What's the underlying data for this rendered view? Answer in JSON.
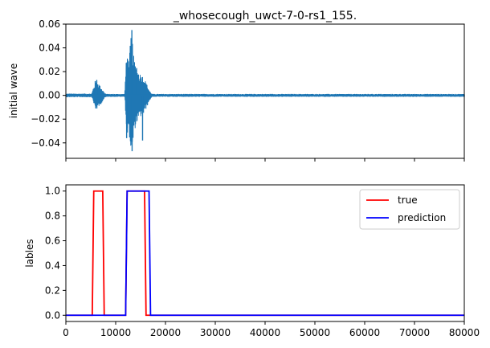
{
  "chart_data": [
    {
      "type": "line",
      "title": "_whosecough_uwct-7-0-rs1_155.",
      "ylabel": "initial wave",
      "xlabel": "",
      "xlim": [
        0,
        80000
      ],
      "ylim": [
        -0.053,
        0.06
      ],
      "yticks": [
        -0.04,
        -0.02,
        0.0,
        0.02,
        0.04,
        0.06
      ],
      "ytick_labels": [
        "−0.04",
        "−0.02",
        "0.00",
        "0.02",
        "0.04",
        "0.06"
      ],
      "xticks": [
        0,
        10000,
        20000,
        30000,
        40000,
        50000,
        60000,
        70000,
        80000
      ],
      "show_xtick_labels": false,
      "grid": false,
      "series": [
        {
          "color": "#1f77b4",
          "noise_amplitude": 0.0015,
          "envelope": [
            [
              0,
              0.0015
            ],
            [
              5200,
              0.0015
            ],
            [
              5600,
              0.008
            ],
            [
              6100,
              0.012
            ],
            [
              6600,
              0.01
            ],
            [
              7200,
              0.006
            ],
            [
              7800,
              0.002
            ],
            [
              8200,
              0.0012
            ],
            [
              11800,
              0.0012
            ],
            [
              12100,
              0.028
            ],
            [
              12300,
              0.036
            ],
            [
              12600,
              0.03
            ],
            [
              13200,
              0.054
            ],
            [
              13700,
              0.03
            ],
            [
              14300,
              0.022
            ],
            [
              15000,
              0.018
            ],
            [
              15600,
              0.016
            ],
            [
              16200,
              0.01
            ],
            [
              16800,
              0.004
            ],
            [
              17300,
              0.0012
            ],
            [
              80000,
              0.0012
            ]
          ],
          "peaks": [
            [
              13250,
              0.055
            ],
            [
              13300,
              -0.047
            ],
            [
              12200,
              -0.036
            ],
            [
              12400,
              0.03
            ],
            [
              15400,
              -0.038
            ],
            [
              14200,
              0.023
            ],
            [
              6200,
              0.013
            ],
            [
              6000,
              -0.011
            ],
            [
              5900,
              0.012
            ]
          ]
        }
      ]
    },
    {
      "type": "line",
      "title": "",
      "ylabel": "lables",
      "xlabel": "",
      "xlim": [
        0,
        80000
      ],
      "ylim": [
        -0.05,
        1.05
      ],
      "yticks": [
        0.0,
        0.2,
        0.4,
        0.6,
        0.8,
        1.0
      ],
      "ytick_labels": [
        "0.0",
        "0.2",
        "0.4",
        "0.6",
        "0.8",
        "1.0"
      ],
      "xticks": [
        0,
        10000,
        20000,
        30000,
        40000,
        50000,
        60000,
        70000,
        80000
      ],
      "xtick_labels": [
        "0",
        "10000",
        "20000",
        "30000",
        "40000",
        "50000",
        "60000",
        "70000",
        "80000"
      ],
      "grid": false,
      "legend": "top-right",
      "series": [
        {
          "name": "true",
          "color": "#ff0000",
          "x": [
            0,
            5300,
            5600,
            7400,
            7700,
            12000,
            12300,
            15800,
            16100,
            80000
          ],
          "y": [
            0,
            0,
            1,
            1,
            0,
            0,
            1,
            1,
            0,
            0
          ]
        },
        {
          "name": "prediction",
          "color": "#0000ff",
          "x": [
            0,
            12000,
            12300,
            16700,
            17000,
            80000
          ],
          "y": [
            0,
            0,
            1,
            1,
            0,
            0
          ]
        }
      ]
    }
  ]
}
